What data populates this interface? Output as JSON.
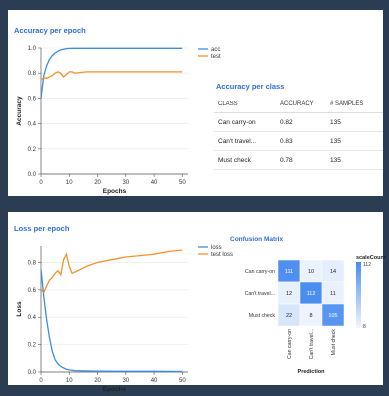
{
  "acc_title": "Accuracy per epoch",
  "loss_title": "Loss per epoch",
  "class_title": "Accuracy per class",
  "cm_title": "Confusion Matrix",
  "table": {
    "headers": [
      "CLASS",
      "ACCURACY",
      "# SAMPLES"
    ],
    "rows": [
      [
        "Can carry-on",
        "0.82",
        "135"
      ],
      [
        "Can't travel...",
        "0.83",
        "135"
      ],
      [
        "Must check",
        "0.78",
        "135"
      ]
    ]
  },
  "colors": {
    "acc": "#3c8dde",
    "test": "#f0932e",
    "cm_low": "#ffffff",
    "cm_high": "#4c8ef0"
  },
  "chart_data": [
    {
      "type": "line",
      "title": "Accuracy per epoch",
      "xlabel": "Epochs",
      "ylabel": "Accuracy",
      "xlim": [
        0,
        52
      ],
      "ylim": [
        0.0,
        1.0
      ],
      "xticks": [
        0,
        10,
        20,
        30,
        40,
        50
      ],
      "yticks": [
        0.0,
        0.2,
        0.4,
        0.6,
        0.8,
        1.0
      ],
      "legend": "right",
      "series": [
        {
          "name": "acc",
          "x": [
            0,
            1,
            2,
            3,
            4,
            5,
            6,
            7,
            8,
            9,
            10,
            12,
            15,
            20,
            30,
            40,
            50
          ],
          "y": [
            0.6,
            0.78,
            0.86,
            0.91,
            0.94,
            0.96,
            0.975,
            0.985,
            0.99,
            0.995,
            0.997,
            0.998,
            0.998,
            0.998,
            0.998,
            0.998,
            0.998
          ]
        },
        {
          "name": "test",
          "x": [
            0,
            1,
            2,
            3,
            4,
            5,
            6,
            7,
            8,
            9,
            10,
            11,
            12,
            14,
            16,
            20,
            30,
            40,
            50
          ],
          "y": [
            0.75,
            0.76,
            0.76,
            0.77,
            0.78,
            0.8,
            0.81,
            0.8,
            0.77,
            0.79,
            0.81,
            0.81,
            0.8,
            0.805,
            0.81,
            0.81,
            0.81,
            0.81,
            0.81
          ]
        }
      ]
    },
    {
      "type": "line",
      "title": "Loss per epoch",
      "xlabel": "Epochs",
      "ylabel": "Loss",
      "xlim": [
        0,
        52
      ],
      "ylim": [
        0.0,
        0.92
      ],
      "xticks": [
        0,
        10,
        20,
        30,
        40,
        50
      ],
      "yticks": [
        0.0,
        0.2,
        0.4,
        0.6,
        0.8
      ],
      "legend": "right",
      "series": [
        {
          "name": "loss",
          "x": [
            0,
            1,
            2,
            3,
            4,
            5,
            6,
            7,
            8,
            9,
            10,
            12,
            15,
            20,
            30,
            40,
            50
          ],
          "y": [
            0.75,
            0.55,
            0.38,
            0.25,
            0.15,
            0.09,
            0.06,
            0.04,
            0.03,
            0.02,
            0.015,
            0.01,
            0.008,
            0.006,
            0.005,
            0.005,
            0.004
          ]
        },
        {
          "name": "test loss",
          "x": [
            0,
            1,
            2,
            3,
            4,
            5,
            6,
            7,
            8,
            9,
            10,
            11,
            12,
            14,
            16,
            20,
            25,
            30,
            35,
            40,
            45,
            50
          ],
          "y": [
            0.6,
            0.58,
            0.63,
            0.67,
            0.69,
            0.72,
            0.74,
            0.71,
            0.82,
            0.86,
            0.77,
            0.72,
            0.73,
            0.75,
            0.77,
            0.8,
            0.82,
            0.84,
            0.85,
            0.86,
            0.88,
            0.89
          ]
        }
      ]
    },
    {
      "type": "heatmap",
      "title": "Confusion Matrix",
      "xlabel": "Prediction",
      "ylabel": "",
      "rows": [
        "Can carry-on",
        "Can't travel...",
        "Must check"
      ],
      "cols": [
        "Can carry-on",
        "Can't travel...",
        "Must check"
      ],
      "values": [
        [
          111,
          10,
          14
        ],
        [
          12,
          112,
          11
        ],
        [
          22,
          8,
          105
        ]
      ],
      "legend_title": "scaleCount",
      "legend_ticks": [
        112,
        8
      ]
    }
  ]
}
